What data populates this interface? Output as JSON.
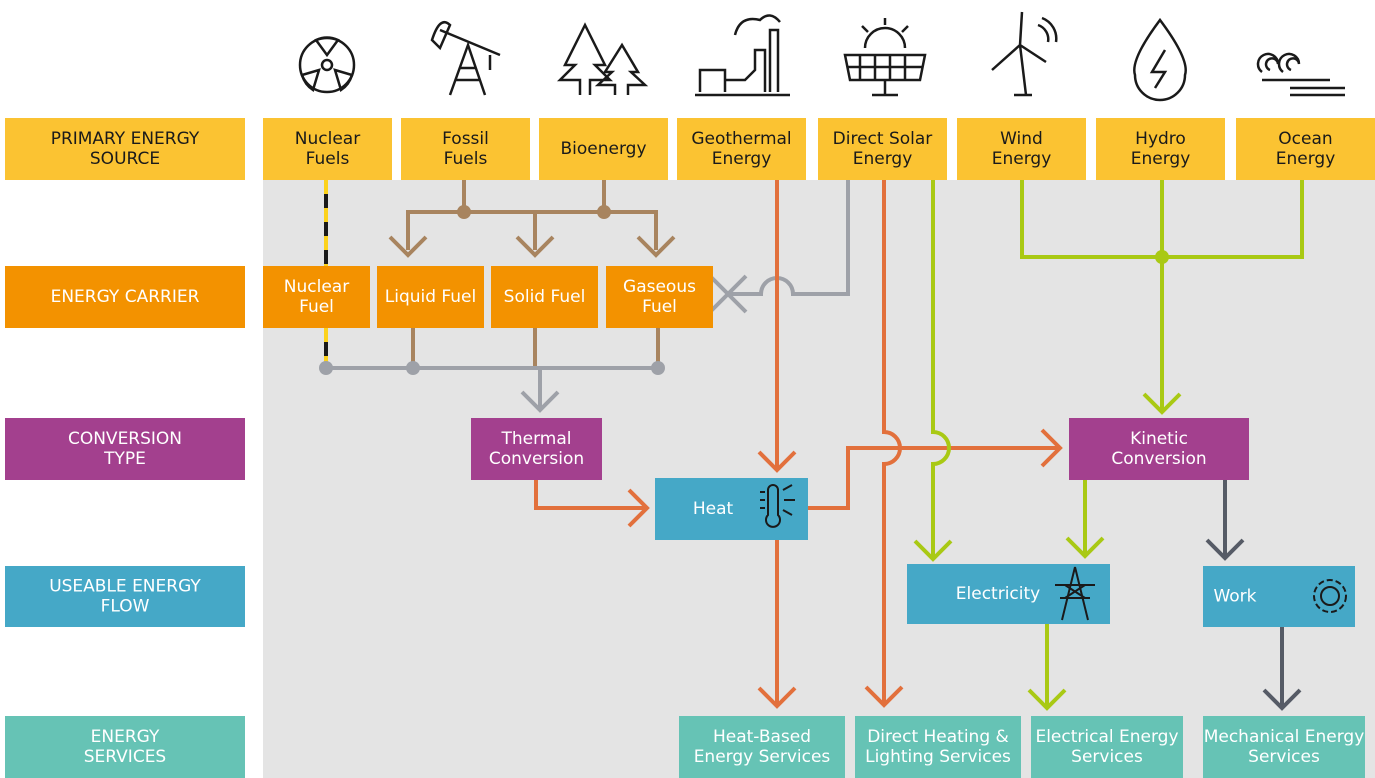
{
  "rows": [
    {
      "lines": [
        "PRIMARY ENERGY",
        "SOURCE"
      ]
    },
    {
      "lines": [
        "ENERGY CARRIER"
      ]
    },
    {
      "lines": [
        "CONVERSION",
        "TYPE"
      ]
    },
    {
      "lines": [
        "USEABLE ENERGY",
        "FLOW"
      ]
    },
    {
      "lines": [
        "ENERGY",
        "SERVICES"
      ]
    }
  ],
  "sources": [
    {
      "lines": [
        "Nuclear",
        "Fuels"
      ]
    },
    {
      "lines": [
        "Fossil",
        "Fuels"
      ]
    },
    {
      "lines": [
        "Bioenergy"
      ]
    },
    {
      "lines": [
        "Geothermal",
        "Energy"
      ]
    },
    {
      "lines": [
        "Direct Solar",
        "Energy"
      ]
    },
    {
      "lines": [
        "Wind",
        "Energy"
      ]
    },
    {
      "lines": [
        "Hydro",
        "Energy"
      ]
    },
    {
      "lines": [
        "Ocean",
        "Energy"
      ]
    }
  ],
  "carriers": [
    {
      "lines": [
        "Nuclear",
        "Fuel"
      ]
    },
    {
      "lines": [
        "Liquid Fuel"
      ]
    },
    {
      "lines": [
        "Solid Fuel"
      ]
    },
    {
      "lines": [
        "Gaseous",
        "Fuel"
      ]
    }
  ],
  "conversions": [
    {
      "lines": [
        "Thermal",
        "Conversion"
      ]
    },
    {
      "lines": [
        "Kinetic",
        "Conversion"
      ]
    }
  ],
  "flows": [
    {
      "lines": [
        "Heat"
      ]
    },
    {
      "lines": [
        "Electricity"
      ]
    },
    {
      "lines": [
        "Work"
      ]
    }
  ],
  "services": [
    {
      "lines": [
        "Heat-Based",
        "Energy Services"
      ]
    },
    {
      "lines": [
        "Direct Heating &",
        "Lighting Services"
      ]
    },
    {
      "lines": [
        "Electrical Energy",
        "Services"
      ]
    },
    {
      "lines": [
        "Mechanical Energy",
        "Services"
      ]
    }
  ]
}
